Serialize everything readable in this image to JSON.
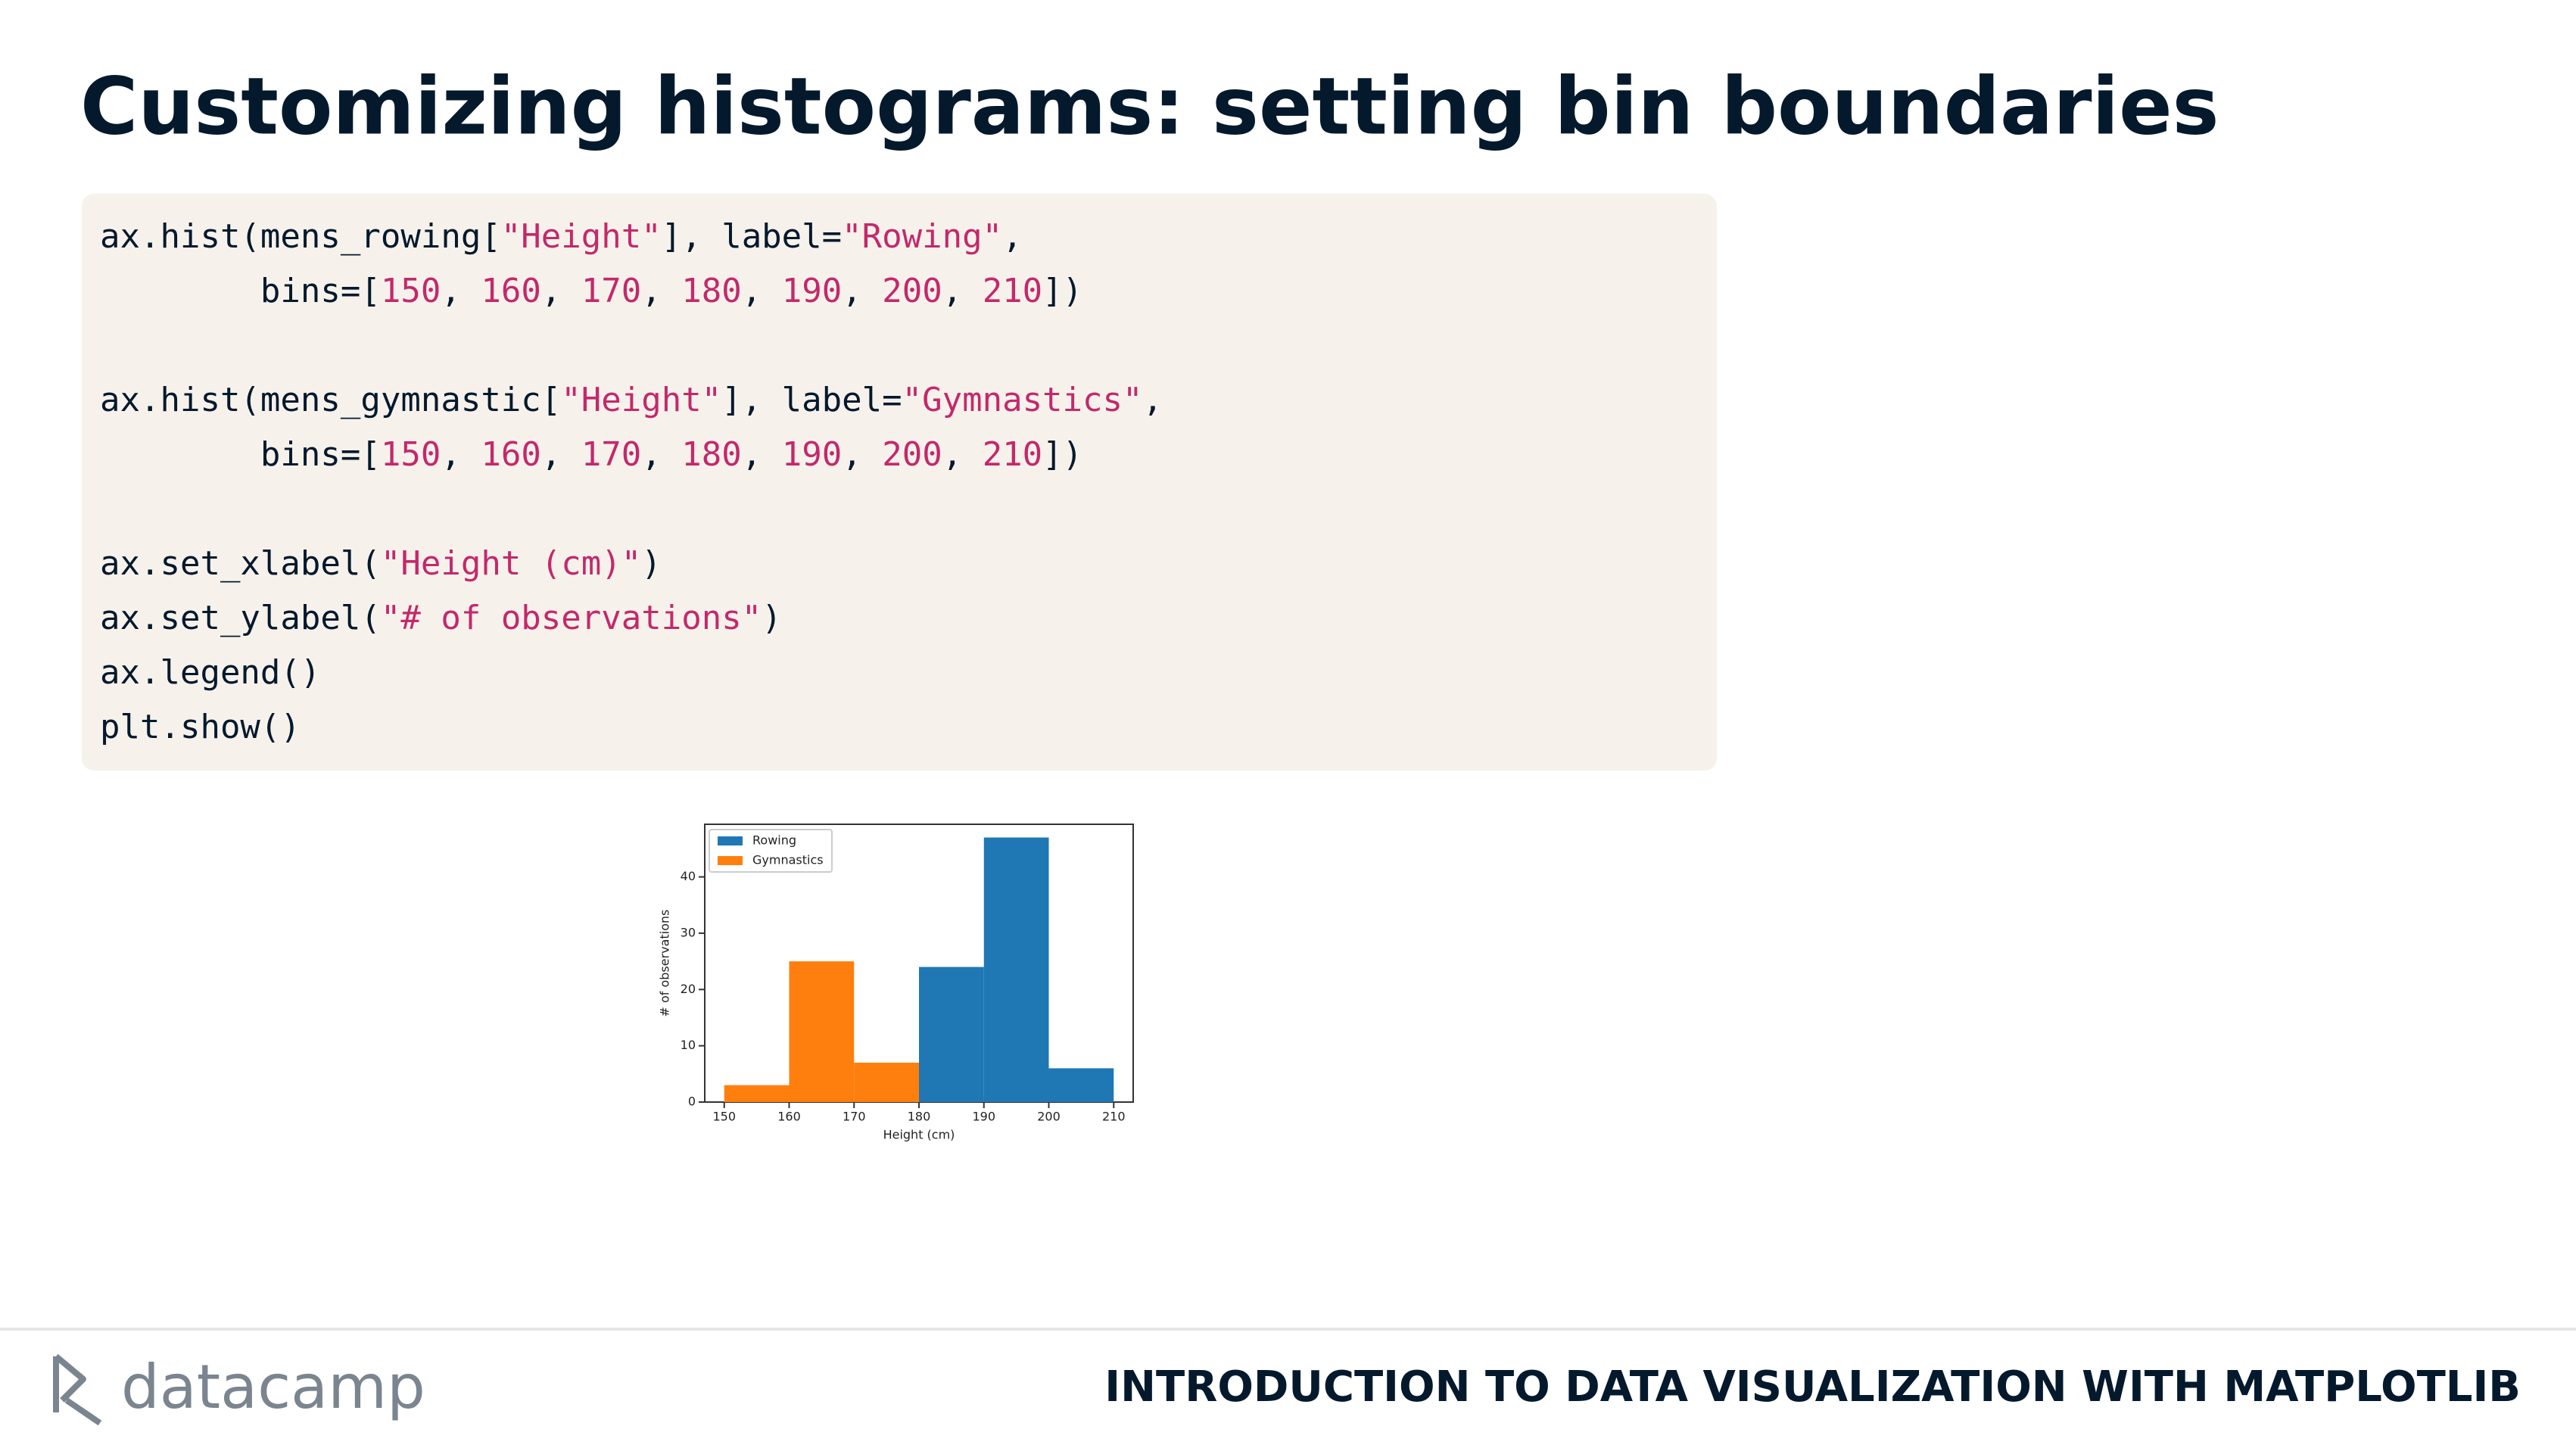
{
  "header": {
    "title": "Customizing histograms: setting bin boundaries"
  },
  "code": {
    "blocks": [
      [
        [
          {
            "text": "ax.hist(mens_rowing[",
            "color": "#05192d"
          },
          {
            "text": "\"Height\"",
            "color": "#c4286b"
          },
          {
            "text": "], label=",
            "color": "#05192d"
          },
          {
            "text": "\"Rowing\"",
            "color": "#c4286b"
          },
          {
            "text": ",",
            "color": "#05192d"
          }
        ],
        [
          {
            "text": "        bins=[",
            "color": "#05192d"
          },
          {
            "text": "150",
            "color": "#c4286b"
          },
          {
            "text": ", ",
            "color": "#05192d"
          },
          {
            "text": "160",
            "color": "#c4286b"
          },
          {
            "text": ", ",
            "color": "#05192d"
          },
          {
            "text": "170",
            "color": "#c4286b"
          },
          {
            "text": ", ",
            "color": "#05192d"
          },
          {
            "text": "180",
            "color": "#c4286b"
          },
          {
            "text": ", ",
            "color": "#05192d"
          },
          {
            "text": "190",
            "color": "#c4286b"
          },
          {
            "text": ", ",
            "color": "#05192d"
          },
          {
            "text": "200",
            "color": "#c4286b"
          },
          {
            "text": ", ",
            "color": "#05192d"
          },
          {
            "text": "210",
            "color": "#c4286b"
          },
          {
            "text": "])",
            "color": "#05192d"
          }
        ]
      ],
      [
        [
          {
            "text": "ax.hist(mens_gymnastic[",
            "color": "#05192d"
          },
          {
            "text": "\"Height\"",
            "color": "#c4286b"
          },
          {
            "text": "], label=",
            "color": "#05192d"
          },
          {
            "text": "\"Gymnastics\"",
            "color": "#c4286b"
          },
          {
            "text": ",",
            "color": "#05192d"
          }
        ],
        [
          {
            "text": "        bins=[",
            "color": "#05192d"
          },
          {
            "text": "150",
            "color": "#c4286b"
          },
          {
            "text": ", ",
            "color": "#05192d"
          },
          {
            "text": "160",
            "color": "#c4286b"
          },
          {
            "text": ", ",
            "color": "#05192d"
          },
          {
            "text": "170",
            "color": "#c4286b"
          },
          {
            "text": ", ",
            "color": "#05192d"
          },
          {
            "text": "180",
            "color": "#c4286b"
          },
          {
            "text": ", ",
            "color": "#05192d"
          },
          {
            "text": "190",
            "color": "#c4286b"
          },
          {
            "text": ", ",
            "color": "#05192d"
          },
          {
            "text": "200",
            "color": "#c4286b"
          },
          {
            "text": ", ",
            "color": "#05192d"
          },
          {
            "text": "210",
            "color": "#c4286b"
          },
          {
            "text": "])",
            "color": "#05192d"
          }
        ]
      ],
      [
        [
          {
            "text": "ax.set_xlabel(",
            "color": "#05192d"
          },
          {
            "text": "\"Height (cm)\"",
            "color": "#c4286b"
          },
          {
            "text": ")",
            "color": "#05192d"
          }
        ],
        [
          {
            "text": "ax.set_ylabel(",
            "color": "#05192d"
          },
          {
            "text": "\"# of observations\"",
            "color": "#c4286b"
          },
          {
            "text": ")",
            "color": "#05192d"
          }
        ],
        [
          {
            "text": "ax.legend()",
            "color": "#05192d"
          }
        ],
        [
          {
            "text": "plt.show()",
            "color": "#05192d"
          }
        ]
      ]
    ]
  },
  "chart_data": {
    "type": "histogram",
    "x_label": "Height (cm)",
    "y_label": "# of observations",
    "bins": [
      150,
      160,
      170,
      180,
      190,
      200,
      210
    ],
    "series": [
      {
        "name": "Gymnastics",
        "color": "#ff7f0e",
        "values": [
          3,
          25,
          7,
          1,
          0,
          0
        ]
      },
      {
        "name": "Rowing",
        "color": "#1f77b4",
        "values": [
          0,
          0,
          0,
          24,
          47,
          6
        ]
      }
    ],
    "legend_order": [
      1,
      0
    ],
    "legend": "upper left",
    "xlim": [
      147,
      213
    ],
    "xticks": [
      150,
      160,
      170,
      180,
      190,
      200,
      210
    ],
    "ylim": [
      0,
      49.35
    ],
    "yticks": [
      0,
      10,
      20,
      30,
      40
    ]
  },
  "footer": {
    "logo": "datacamp",
    "course": "INTRODUCTION TO DATA VISUALIZATION WITH MATPLOTLIB"
  }
}
